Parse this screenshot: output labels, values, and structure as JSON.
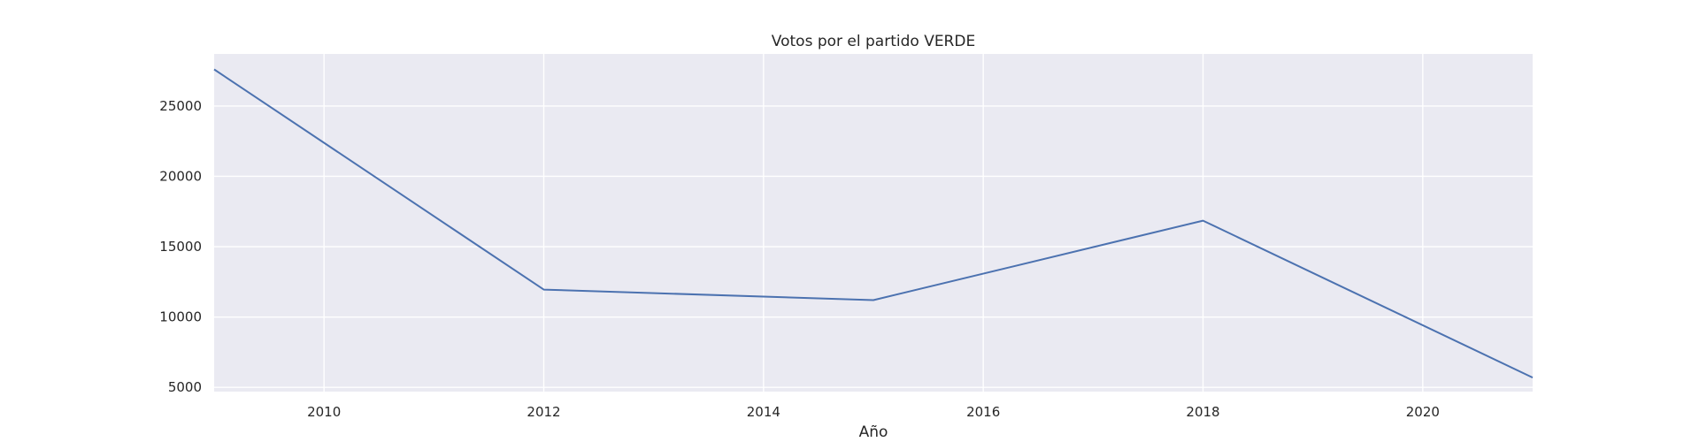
{
  "chart_data": {
    "type": "line",
    "title": "Votos por el partido VERDE",
    "xlabel": "Año",
    "ylabel": "",
    "xlim": [
      2009,
      2021
    ],
    "ylim": [
      4700,
      28700
    ],
    "xticks": [
      2010,
      2012,
      2014,
      2016,
      2018,
      2020
    ],
    "yticks": [
      5000,
      10000,
      15000,
      20000,
      25000
    ],
    "grid": true,
    "series": [
      {
        "color": "#4c72b0",
        "x": [
          2009,
          2012,
          2015,
          2018,
          2021
        ],
        "y": [
          27600,
          11950,
          11200,
          16850,
          5700
        ]
      }
    ]
  }
}
